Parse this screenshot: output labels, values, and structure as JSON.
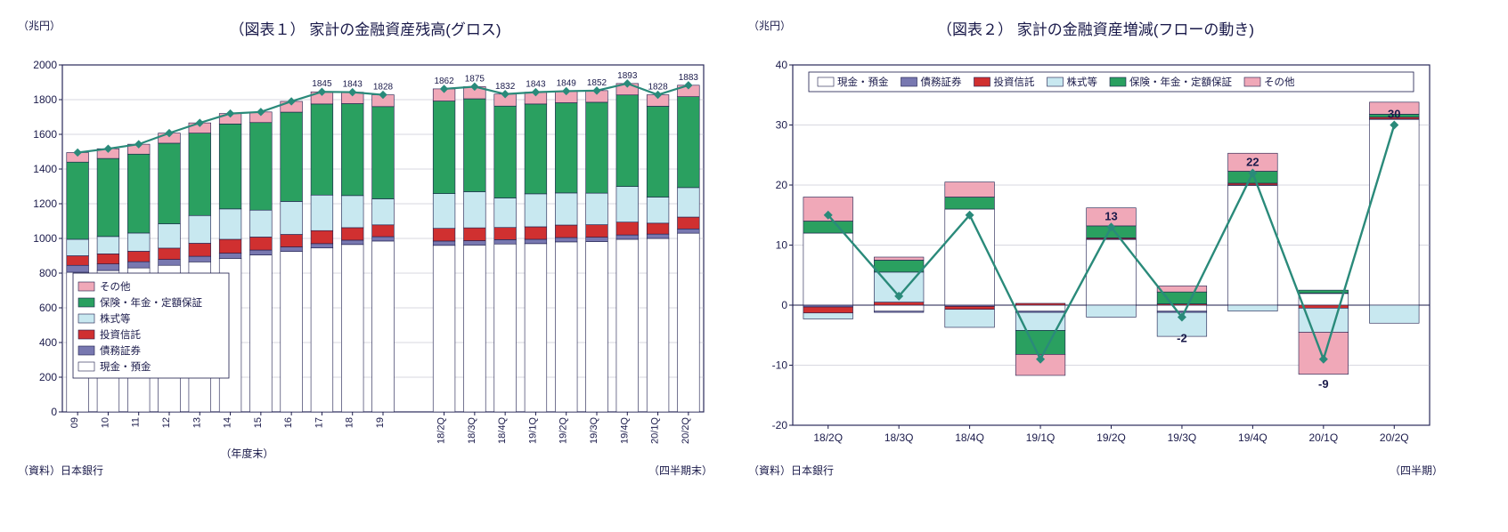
{
  "colors": {
    "text": "#1a1a4a",
    "axis": "#1a1a4a",
    "grid": "#b0b0c0",
    "plot_border": "#2a2a5a",
    "background": "#ffffff",
    "line": "#2a8a7a",
    "line_marker": "#2a8a7a",
    "red_label": "#c03030",
    "series": {
      "other": "#f0a8b8",
      "insurance": "#2aa060",
      "stocks": "#c8e8f0",
      "invtrust": "#d03030",
      "bonds": "#7878b0",
      "cash": "#ffffff"
    },
    "bar_border": "#1a1a4a",
    "legend_border": "#1a1a4a"
  },
  "chart1": {
    "title": "（図表１） 家計の金融資産残高(グロス)",
    "y_unit": "（兆円）",
    "x_unit_left": "（年度末）",
    "x_unit_right": "（四半期末）",
    "source": "（資料）日本銀行",
    "ylim": [
      0,
      2000
    ],
    "ytick_step": 200,
    "legend_order": [
      "other",
      "insurance",
      "stocks",
      "invtrust",
      "bonds",
      "cash"
    ],
    "legend_labels": {
      "other": "その他",
      "insurance": "保険・年金・定額保証",
      "stocks": "株式等",
      "invtrust": "投資信託",
      "bonds": "債務証券",
      "cash": "現金・預金"
    },
    "stack_order": [
      "cash",
      "bonds",
      "invtrust",
      "stocks",
      "insurance",
      "other"
    ],
    "groups": {
      "annual": {
        "categories": [
          "09",
          "10",
          "11",
          "12",
          "13",
          "14",
          "15",
          "16",
          "17",
          "18",
          "19"
        ],
        "data": {
          "cash": [
            805,
            815,
            830,
            845,
            865,
            885,
            905,
            925,
            945,
            965,
            985
          ],
          "bonds": [
            40,
            38,
            36,
            34,
            32,
            30,
            28,
            26,
            25,
            25,
            25
          ],
          "invtrust": [
            55,
            58,
            60,
            65,
            75,
            80,
            75,
            72,
            75,
            72,
            68
          ],
          "stocks": [
            95,
            100,
            105,
            140,
            160,
            175,
            155,
            190,
            205,
            185,
            150
          ],
          "insurance": [
            445,
            450,
            455,
            465,
            475,
            490,
            505,
            515,
            525,
            530,
            532
          ],
          "other": [
            55,
            56,
            57,
            58,
            59,
            60,
            61,
            62,
            70,
            66,
            68
          ]
        },
        "totals_label_start_index": 8,
        "totals": [
          1495,
          1517,
          1543,
          1607,
          1666,
          1720,
          1729,
          1790,
          1845,
          1843,
          1828
        ]
      },
      "quarterly": {
        "categories": [
          "18/2Q",
          "18/3Q",
          "18/4Q",
          "19/1Q",
          "19/2Q",
          "19/3Q",
          "19/4Q",
          "20/1Q",
          "20/2Q"
        ],
        "data": {
          "cash": [
            960,
            962,
            968,
            970,
            980,
            982,
            995,
            1000,
            1030
          ],
          "bonds": [
            25,
            25,
            25,
            25,
            25,
            25,
            25,
            25,
            25
          ],
          "invtrust": [
            73,
            74,
            70,
            72,
            72,
            72,
            74,
            63,
            68
          ],
          "stocks": [
            200,
            208,
            170,
            190,
            185,
            182,
            205,
            150,
            170
          ],
          "insurance": [
            534,
            536,
            530,
            518,
            520,
            524,
            528,
            524,
            524
          ],
          "other": [
            70,
            70,
            69,
            68,
            67,
            67,
            66,
            66,
            66
          ]
        },
        "totals": [
          1862,
          1875,
          1832,
          1843,
          1849,
          1852,
          1893,
          1828,
          1883
        ]
      }
    }
  },
  "chart2": {
    "title": "（図表２） 家計の金融資産増減(フローの動き)",
    "y_unit": "（兆円）",
    "x_unit": "（四半期）",
    "source": "（資料）日本銀行",
    "ylim": [
      -20,
      40
    ],
    "ytick_step": 10,
    "categories": [
      "18/2Q",
      "18/3Q",
      "18/4Q",
      "19/1Q",
      "19/2Q",
      "19/3Q",
      "19/4Q",
      "20/1Q",
      "20/2Q"
    ],
    "line_values": [
      15,
      1.5,
      15,
      -9,
      13,
      -2,
      22,
      -9,
      30
    ],
    "labels": [
      {
        "i": 4,
        "text": "13",
        "color": "text",
        "dy": -8
      },
      {
        "i": 5,
        "text": "-2",
        "color": "red",
        "dy": 28
      },
      {
        "i": 6,
        "text": "22",
        "color": "text",
        "dy": -8
      },
      {
        "i": 7,
        "text": "-9",
        "color": "red",
        "dy": 32
      },
      {
        "i": 8,
        "text": "30",
        "color": "text",
        "dy": -8
      }
    ],
    "legend_order": [
      "cash",
      "bonds",
      "invtrust",
      "stocks",
      "insurance",
      "other"
    ],
    "legend_labels": {
      "cash": "現金・預金",
      "bonds": "債務証券",
      "invtrust": "投資信託",
      "stocks": "株式等",
      "insurance": "保険・年金・定額保証",
      "other": "その他"
    },
    "segments": {
      "cash": [
        12,
        -1,
        16,
        -1,
        11,
        -1,
        20,
        2,
        31
      ],
      "bonds": [
        -0.3,
        -0.2,
        -0.2,
        -0.2,
        0,
        -0.2,
        0,
        0,
        0
      ],
      "invtrust": [
        -1,
        0.5,
        -0.5,
        0.3,
        0.2,
        0.2,
        0.3,
        -0.5,
        0.3
      ],
      "stocks": [
        -1,
        5,
        -3,
        -3,
        -2,
        -4,
        -1,
        -4,
        -3
      ],
      "insurance": [
        2,
        2,
        2,
        -4,
        2,
        2,
        2,
        0.5,
        0.5
      ],
      "other": [
        4,
        0.5,
        2.5,
        -3.5,
        3,
        1,
        3,
        -7,
        2
      ]
    }
  }
}
